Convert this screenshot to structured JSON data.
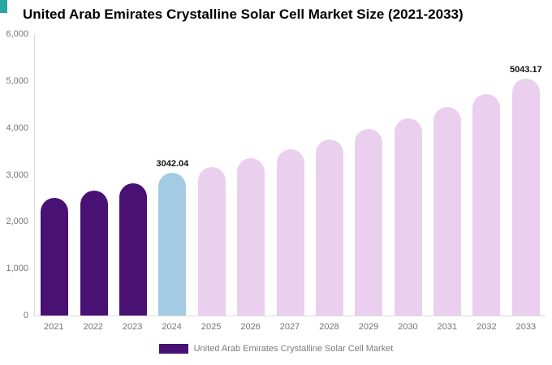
{
  "logo": {
    "color": "#29a7a3"
  },
  "title": "United Arab Emirates Crystalline Solar Cell Market Size (2021-2033)",
  "legend": {
    "label": "United Arab Emirates Crystalline Solar Cell Market"
  },
  "colors": {
    "historical": "#481173",
    "current": "#a4cbe4",
    "forecast": "#ebcfee",
    "axis_text": "#757575",
    "value_label_text": "#111111"
  },
  "chart_data": {
    "type": "bar",
    "title": "United Arab Emirates Crystalline Solar Cell Market Size (2021-2033)",
    "categories": [
      "2021",
      "2022",
      "2023",
      "2024",
      "2025",
      "2026",
      "2027",
      "2028",
      "2029",
      "2030",
      "2031",
      "2032",
      "2033"
    ],
    "values": [
      2500,
      2660,
      2820,
      3042.04,
      3160,
      3360,
      3540,
      3760,
      3980,
      4210,
      4450,
      4720,
      5043.17
    ],
    "bar_roles": [
      "historical",
      "historical",
      "historical",
      "current",
      "forecast",
      "forecast",
      "forecast",
      "forecast",
      "forecast",
      "forecast",
      "forecast",
      "forecast",
      "forecast"
    ],
    "bar_labels": [
      "",
      "",
      "",
      "3042.04",
      "",
      "",
      "",
      "",
      "",
      "",
      "",
      "",
      "5043.17"
    ],
    "ylim": [
      0,
      6000
    ],
    "yticks": [
      0,
      1000,
      2000,
      3000,
      4000,
      5000,
      6000
    ],
    "ytick_labels": [
      "0",
      "1,000",
      "2,000",
      "3,000",
      "4,000",
      "5,000",
      "6,000"
    ],
    "xlabel": "",
    "ylabel": "",
    "grid": false,
    "legend_position": "bottom"
  }
}
